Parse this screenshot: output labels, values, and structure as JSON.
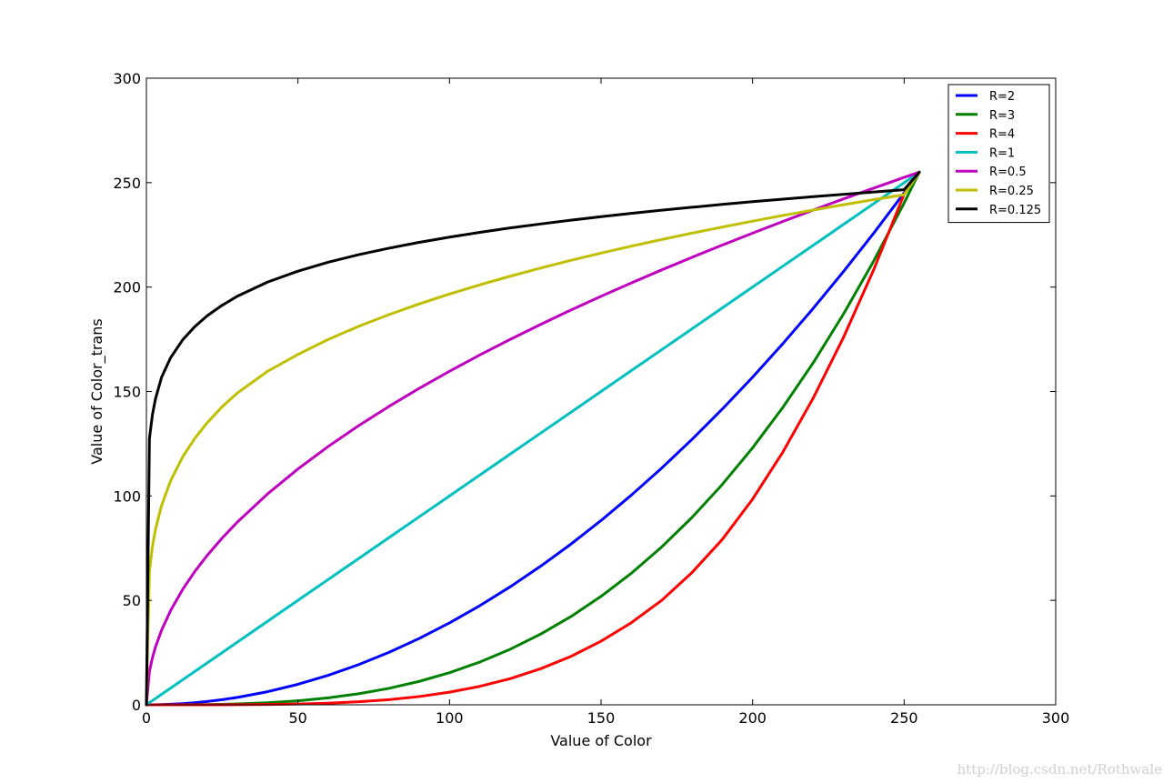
{
  "chart_data": {
    "type": "line",
    "title": "",
    "xlabel": "Value of Color",
    "ylabel": "Value of Color_trans",
    "xlim": [
      0,
      300
    ],
    "ylim": [
      0,
      300
    ],
    "xticks": [
      0,
      50,
      100,
      150,
      200,
      250,
      300
    ],
    "yticks": [
      0,
      50,
      100,
      150,
      200,
      250,
      300
    ],
    "grid": false,
    "legend_position": "top-right",
    "x": [
      0,
      1,
      2,
      3,
      5,
      8,
      12,
      16,
      20,
      25,
      30,
      40,
      50,
      60,
      70,
      80,
      90,
      100,
      110,
      120,
      130,
      140,
      150,
      160,
      170,
      180,
      190,
      200,
      210,
      220,
      230,
      240,
      250,
      255
    ],
    "series": [
      {
        "name": "R=2",
        "color": "#0000ff",
        "values": [
          0.0,
          0.0,
          0.02,
          0.04,
          0.1,
          0.25,
          0.56,
          1.0,
          1.57,
          2.45,
          3.53,
          6.27,
          9.8,
          14.12,
          19.22,
          25.1,
          31.76,
          39.22,
          47.45,
          56.47,
          66.27,
          76.86,
          88.24,
          100.39,
          113.33,
          127.06,
          141.57,
          156.86,
          172.94,
          189.8,
          207.45,
          225.88,
          245.1,
          255.0
        ]
      },
      {
        "name": "R=3",
        "color": "#008000",
        "values": [
          0.0,
          0.0,
          0.0,
          0.0,
          0.0,
          0.01,
          0.03,
          0.06,
          0.12,
          0.24,
          0.42,
          0.98,
          1.92,
          3.32,
          5.28,
          7.87,
          11.21,
          15.38,
          20.47,
          26.58,
          33.79,
          42.2,
          51.9,
          62.99,
          75.56,
          89.69,
          105.49,
          123.03,
          142.43,
          163.76,
          187.12,
          212.6,
          240.29,
          255.0
        ]
      },
      {
        "name": "R=4",
        "color": "#ff0000",
        "values": [
          0.0,
          0.0,
          0.0,
          0.0,
          0.0,
          0.0,
          0.0,
          0.0,
          0.0,
          0.02,
          0.05,
          0.15,
          0.38,
          0.78,
          1.45,
          2.47,
          3.95,
          6.03,
          8.83,
          12.51,
          17.22,
          23.14,
          30.44,
          39.31,
          50.0,
          63.3,
          79.16,
          98.47,
          121.04,
          146.84,
          175.95,
          208.47,
          244.51,
          255.0
        ]
      },
      {
        "name": "R=1",
        "color": "#00bfbf",
        "values": [
          0,
          1,
          2,
          3,
          5,
          8,
          12,
          16,
          20,
          25,
          30,
          40,
          50,
          60,
          70,
          80,
          90,
          100,
          110,
          120,
          130,
          140,
          150,
          160,
          170,
          180,
          190,
          200,
          210,
          220,
          230,
          240,
          250,
          255
        ]
      },
      {
        "name": "R=0.5",
        "color": "#bf00bf",
        "values": [
          0.0,
          15.97,
          22.58,
          27.66,
          35.71,
          45.17,
          55.32,
          63.87,
          71.41,
          79.84,
          87.46,
          100.99,
          112.92,
          123.69,
          133.6,
          142.83,
          151.5,
          159.69,
          167.48,
          174.93,
          182.07,
          188.96,
          195.58,
          201.99,
          208.21,
          214.24,
          220.12,
          225.83,
          231.42,
          236.87,
          242.21,
          247.4,
          252.5,
          255.0
        ]
      },
      {
        "name": "R=0.25",
        "color": "#bfbf00",
        "values": [
          0.0,
          63.81,
          75.89,
          84.0,
          95.42,
          107.29,
          118.77,
          127.59,
          134.94,
          142.71,
          149.26,
          159.69,
          167.74,
          174.94,
          181.2,
          186.8,
          191.92,
          196.65,
          201.06,
          205.19,
          209.07,
          212.77,
          216.26,
          219.6,
          222.77,
          225.82,
          228.74,
          231.56,
          234.27,
          236.87,
          239.41,
          241.87,
          244.23,
          255.0
        ]
      },
      {
        "name": "R=0.125",
        "color": "#000000",
        "values": [
          0.0,
          127.5,
          139.0,
          146.5,
          156.8,
          166.2,
          174.8,
          181.1,
          186.2,
          191.3,
          195.6,
          202.4,
          207.6,
          211.9,
          215.5,
          218.6,
          221.4,
          223.9,
          226.2,
          228.3,
          230.2,
          232.0,
          233.7,
          235.3,
          236.8,
          238.2,
          239.6,
          240.9,
          242.1,
          243.3,
          244.4,
          245.5,
          246.6,
          255.0
        ]
      }
    ]
  },
  "watermark": "http://blog.csdn.net/Rothwale"
}
